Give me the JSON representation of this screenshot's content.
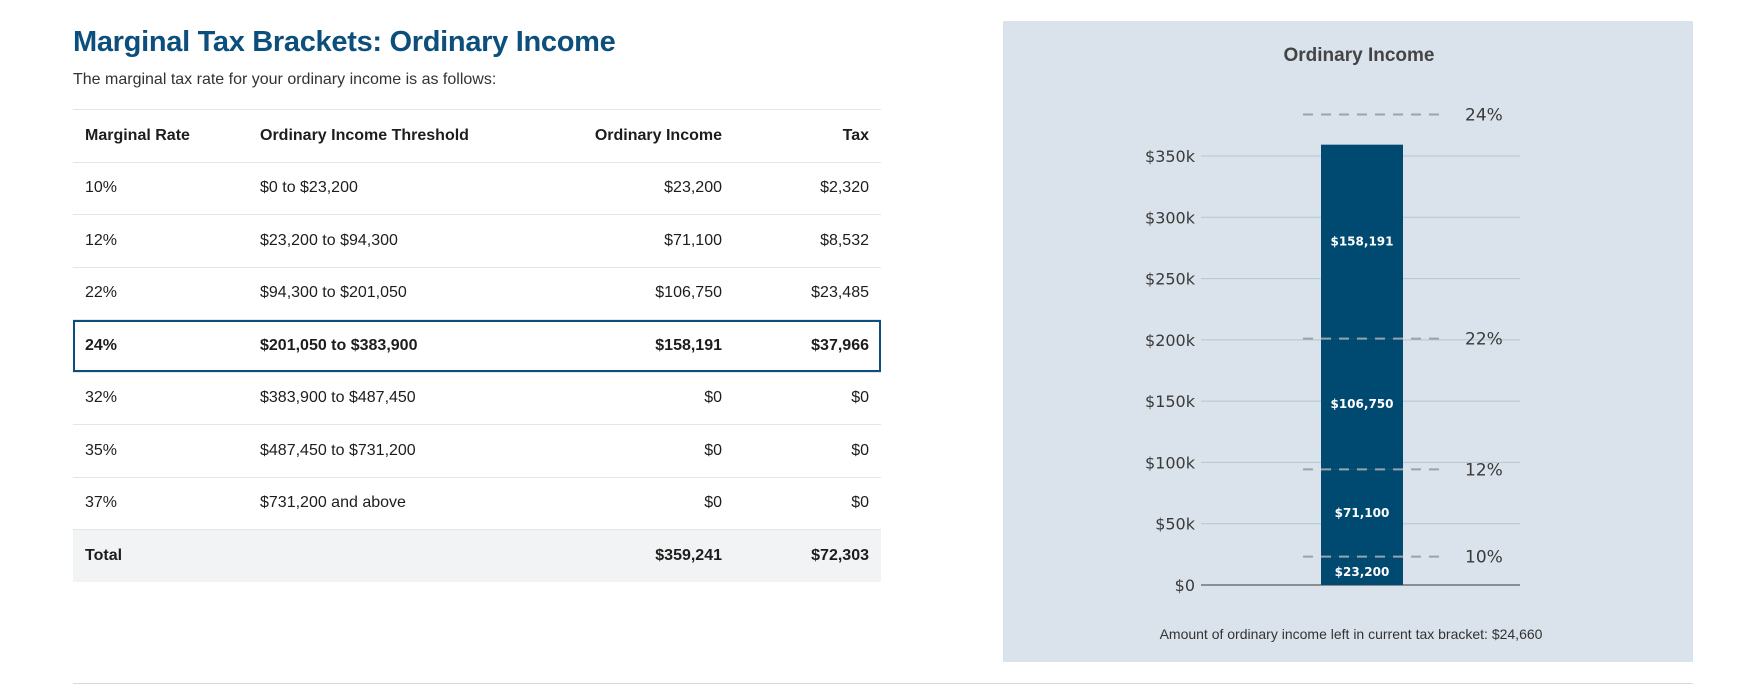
{
  "header": {
    "title": "Marginal Tax Brackets: Ordinary Income",
    "subtitle": "The marginal tax rate for your ordinary income is as follows:"
  },
  "table": {
    "columns": [
      "Marginal Rate",
      "Ordinary Income Threshold",
      "Ordinary Income",
      "Tax"
    ],
    "rows": [
      {
        "rate": "10%",
        "threshold": "$0 to $23,200",
        "income": "$23,200",
        "tax": "$2,320",
        "active": false
      },
      {
        "rate": "12%",
        "threshold": "$23,200 to $94,300",
        "income": "$71,100",
        "tax": "$8,532",
        "active": false
      },
      {
        "rate": "22%",
        "threshold": "$94,300 to $201,050",
        "income": "$106,750",
        "tax": "$23,485",
        "active": false
      },
      {
        "rate": "24%",
        "threshold": "$201,050 to $383,900",
        "income": "$158,191",
        "tax": "$37,966",
        "active": true
      },
      {
        "rate": "32%",
        "threshold": "$383,900 to $487,450",
        "income": "$0",
        "tax": "$0",
        "active": false
      },
      {
        "rate": "35%",
        "threshold": "$487,450 to $731,200",
        "income": "$0",
        "tax": "$0",
        "active": false
      },
      {
        "rate": "37%",
        "threshold": "$731,200 and above",
        "income": "$0",
        "tax": "$0",
        "active": false
      }
    ],
    "total": {
      "label": "Total",
      "income": "$359,241",
      "tax": "$72,303"
    }
  },
  "chart_data": {
    "type": "bar",
    "title": "Ordinary Income",
    "stacked": true,
    "ylim": [
      0,
      380000
    ],
    "yticks": [
      {
        "value": 0,
        "label": "$0"
      },
      {
        "value": 50000,
        "label": "$50k"
      },
      {
        "value": 100000,
        "label": "$100k"
      },
      {
        "value": 150000,
        "label": "$150k"
      },
      {
        "value": 200000,
        "label": "$200k"
      },
      {
        "value": 250000,
        "label": "$250k"
      },
      {
        "value": 300000,
        "label": "$300k"
      },
      {
        "value": 350000,
        "label": "$350k"
      }
    ],
    "grid": true,
    "segments": [
      {
        "value": 23200,
        "label": "$23,200"
      },
      {
        "value": 71100,
        "label": "$71,100"
      },
      {
        "value": 106750,
        "label": "$106,750"
      },
      {
        "value": 158191,
        "label": "$158,191"
      }
    ],
    "bracket_lines": [
      {
        "value": 23200,
        "label": "10%"
      },
      {
        "value": 94300,
        "label": "12%"
      },
      {
        "value": 201050,
        "label": "22%"
      },
      {
        "value": 383900,
        "label": "24%"
      }
    ],
    "footnote": "Amount of ordinary income left in current tax bracket: $24,660",
    "colors": {
      "bar": "#004a72",
      "grid": "#b5c4d1",
      "dash": "#9aa3aa",
      "text": "#444444"
    }
  }
}
